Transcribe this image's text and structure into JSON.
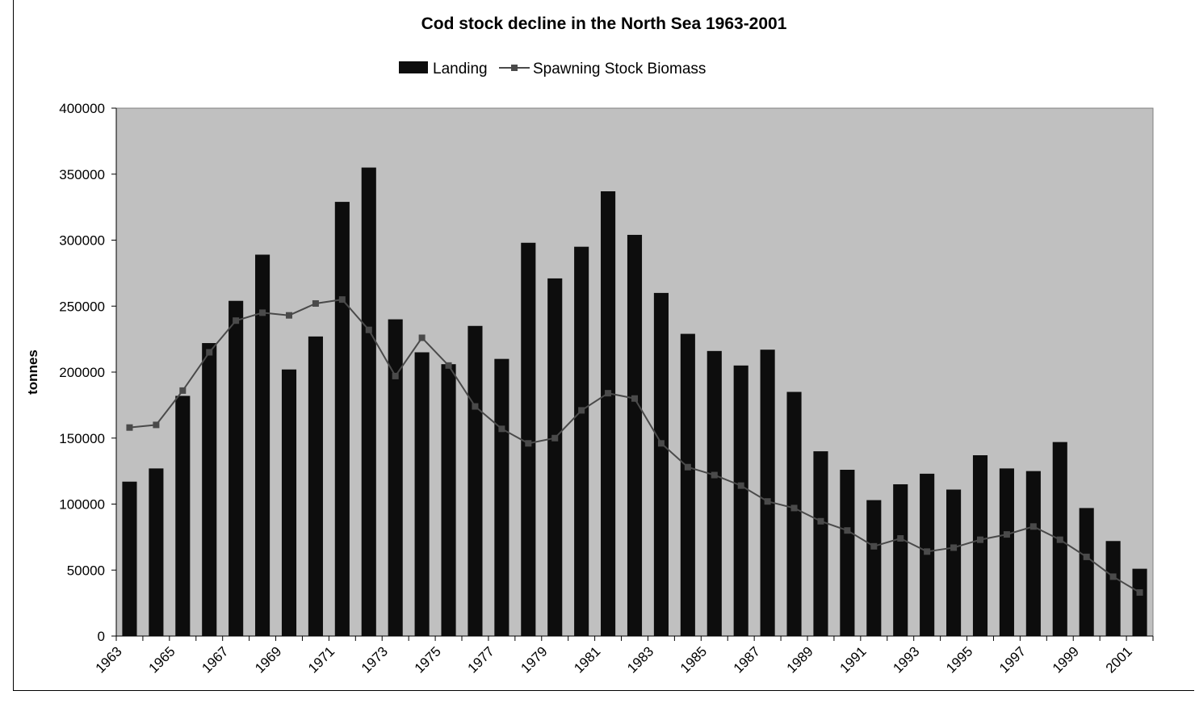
{
  "chart_data": {
    "type": "bar",
    "title": "Cod stock decline in the North Sea 1963-2001",
    "xlabel": "",
    "ylabel": "tonnes",
    "ylim": [
      0,
      400000
    ],
    "yticks": [
      0,
      50000,
      100000,
      150000,
      200000,
      250000,
      300000,
      350000,
      400000
    ],
    "legend_position": "top-center",
    "grid": false,
    "plot_background": "#c0c0c0",
    "categories": [
      "1963",
      "1964",
      "1965",
      "1966",
      "1967",
      "1968",
      "1969",
      "1970",
      "1971",
      "1972",
      "1973",
      "1974",
      "1975",
      "1976",
      "1977",
      "1978",
      "1979",
      "1980",
      "1981",
      "1982",
      "1983",
      "1984",
      "1985",
      "1986",
      "1987",
      "1988",
      "1989",
      "1990",
      "1991",
      "1992",
      "1993",
      "1994",
      "1995",
      "1996",
      "1997",
      "1998",
      "1999",
      "2000",
      "2001"
    ],
    "x_tick_labels": [
      "1963",
      "1965",
      "1967",
      "1969",
      "1971",
      "1973",
      "1975",
      "1977",
      "1979",
      "1981",
      "1983",
      "1985",
      "1987",
      "1989",
      "1991",
      "1993",
      "1995",
      "1997",
      "1999",
      "2001"
    ],
    "series": [
      {
        "name": "Landing",
        "type": "bar",
        "color": "#0d0d0d",
        "values": [
          117000,
          127000,
          182000,
          222000,
          254000,
          289000,
          202000,
          227000,
          329000,
          355000,
          240000,
          215000,
          206000,
          235000,
          210000,
          298000,
          271000,
          295000,
          337000,
          304000,
          260000,
          229000,
          216000,
          205000,
          217000,
          185000,
          140000,
          126000,
          103000,
          115000,
          123000,
          111000,
          137000,
          127000,
          125000,
          147000,
          97000,
          72000,
          51000
        ]
      },
      {
        "name": "Spawning Stock Biomass",
        "type": "line",
        "color": "#4a4a4a",
        "marker": "square",
        "values": [
          158000,
          160000,
          186000,
          215000,
          239000,
          245000,
          243000,
          252000,
          255000,
          232000,
          197000,
          226000,
          205000,
          174000,
          157000,
          146000,
          150000,
          171000,
          184000,
          180000,
          146000,
          128000,
          122000,
          114000,
          102000,
          97000,
          87000,
          80000,
          68000,
          74000,
          64000,
          67000,
          73000,
          77000,
          83000,
          73000,
          60000,
          45000,
          33000
        ]
      }
    ]
  }
}
